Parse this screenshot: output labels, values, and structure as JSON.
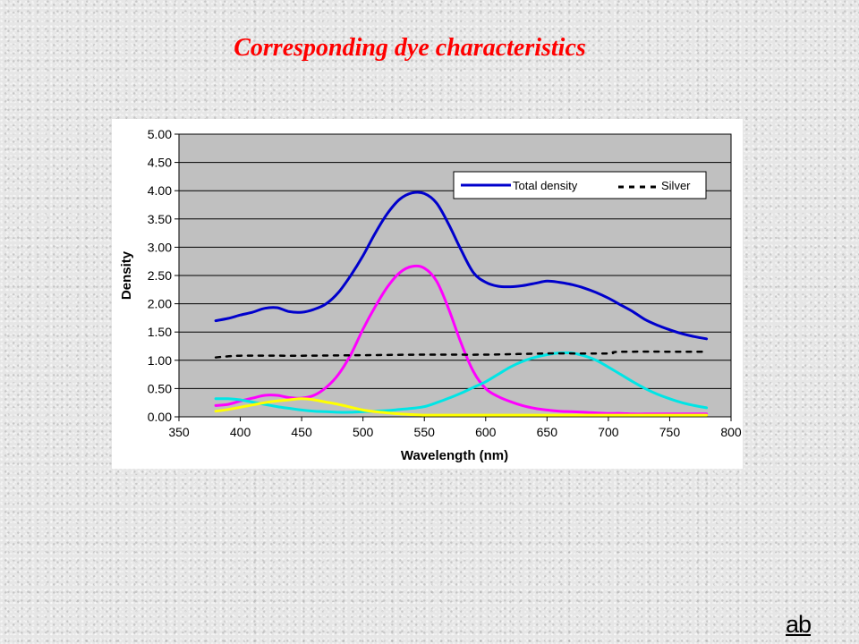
{
  "slide": {
    "title": "Corresponding dye characteristics",
    "logo_text": "ab"
  },
  "colors": {
    "title": "#ff0000",
    "plot_bg": "#c0c0c0",
    "total_density": "#0000cc",
    "magenta": "#ff00ff",
    "cyan": "#00e5e5",
    "yellow": "#ffff00",
    "silver": "#000000"
  },
  "chart_data": {
    "type": "line",
    "title": "",
    "xlabel": "Wavelength (nm)",
    "ylabel": "Density",
    "xlim": [
      350,
      800
    ],
    "ylim": [
      0,
      5
    ],
    "x_ticks": [
      "350",
      "400",
      "450",
      "500",
      "550",
      "600",
      "650",
      "700",
      "750",
      "800"
    ],
    "y_ticks": [
      "0.00",
      "0.50",
      "1.00",
      "1.50",
      "2.00",
      "2.50",
      "3.00",
      "3.50",
      "4.00",
      "4.50",
      "5.00"
    ],
    "grid": "horizontal",
    "legend_position": "top-right",
    "legend_entries": [
      "Total density",
      "Silver"
    ],
    "series": [
      {
        "name": "Total density",
        "color": "#0000cc",
        "style": "solid",
        "x": [
          380,
          390,
          400,
          410,
          420,
          430,
          440,
          450,
          460,
          470,
          480,
          490,
          500,
          510,
          520,
          530,
          540,
          550,
          560,
          570,
          580,
          590,
          600,
          610,
          620,
          630,
          640,
          650,
          660,
          670,
          680,
          690,
          700,
          710,
          720,
          730,
          740,
          750,
          760,
          770,
          780
        ],
        "y": [
          1.7,
          1.74,
          1.8,
          1.85,
          1.92,
          1.93,
          1.86,
          1.85,
          1.9,
          2.0,
          2.2,
          2.5,
          2.85,
          3.25,
          3.6,
          3.85,
          3.96,
          3.95,
          3.78,
          3.4,
          2.95,
          2.55,
          2.38,
          2.31,
          2.3,
          2.32,
          2.36,
          2.4,
          2.38,
          2.34,
          2.28,
          2.2,
          2.1,
          1.98,
          1.86,
          1.72,
          1.62,
          1.54,
          1.47,
          1.42,
          1.38
        ]
      },
      {
        "color": "#ff00ff",
        "style": "solid",
        "x": [
          380,
          390,
          400,
          410,
          420,
          430,
          440,
          450,
          460,
          470,
          480,
          490,
          500,
          510,
          520,
          530,
          540,
          550,
          560,
          570,
          580,
          590,
          600,
          610,
          620,
          630,
          640,
          650,
          660,
          670,
          680,
          690,
          700,
          710,
          720,
          730,
          740,
          750,
          760,
          770,
          780
        ],
        "y": [
          0.2,
          0.22,
          0.28,
          0.33,
          0.38,
          0.38,
          0.34,
          0.33,
          0.38,
          0.52,
          0.75,
          1.1,
          1.55,
          1.95,
          2.3,
          2.55,
          2.66,
          2.63,
          2.4,
          1.9,
          1.3,
          0.8,
          0.5,
          0.36,
          0.27,
          0.2,
          0.15,
          0.12,
          0.1,
          0.09,
          0.08,
          0.07,
          0.06,
          0.06,
          0.05,
          0.05,
          0.05,
          0.05,
          0.05,
          0.05,
          0.05
        ]
      },
      {
        "color": "#00e5e5",
        "style": "solid",
        "x": [
          380,
          390,
          400,
          410,
          420,
          430,
          440,
          450,
          460,
          470,
          480,
          490,
          500,
          510,
          520,
          530,
          540,
          550,
          560,
          570,
          580,
          590,
          600,
          610,
          620,
          630,
          640,
          650,
          660,
          670,
          680,
          690,
          700,
          710,
          720,
          730,
          740,
          750,
          760,
          770,
          780
        ],
        "y": [
          0.32,
          0.32,
          0.3,
          0.26,
          0.22,
          0.18,
          0.15,
          0.12,
          0.1,
          0.09,
          0.08,
          0.08,
          0.09,
          0.1,
          0.11,
          0.13,
          0.15,
          0.18,
          0.25,
          0.33,
          0.42,
          0.52,
          0.62,
          0.75,
          0.88,
          0.98,
          1.05,
          1.1,
          1.13,
          1.13,
          1.08,
          1.0,
          0.88,
          0.75,
          0.62,
          0.5,
          0.4,
          0.32,
          0.25,
          0.2,
          0.16
        ]
      },
      {
        "color": "#ffff00",
        "style": "solid",
        "x": [
          380,
          390,
          400,
          410,
          420,
          430,
          440,
          450,
          460,
          470,
          480,
          490,
          500,
          510,
          520,
          530,
          540,
          550,
          560,
          570,
          580,
          590,
          600,
          610,
          620,
          630,
          640,
          650,
          660,
          670,
          680,
          690,
          700,
          710,
          720,
          730,
          740,
          750,
          760,
          770,
          780
        ],
        "y": [
          0.1,
          0.13,
          0.17,
          0.21,
          0.25,
          0.28,
          0.3,
          0.32,
          0.3,
          0.26,
          0.22,
          0.17,
          0.12,
          0.09,
          0.07,
          0.05,
          0.04,
          0.03,
          0.03,
          0.03,
          0.03,
          0.03,
          0.03,
          0.03,
          0.03,
          0.03,
          0.03,
          0.03,
          0.03,
          0.03,
          0.03,
          0.03,
          0.03,
          0.03,
          0.03,
          0.03,
          0.03,
          0.03,
          0.03,
          0.03,
          0.03
        ]
      },
      {
        "name": "Silver",
        "color": "#000000",
        "style": "dashed",
        "x": [
          380,
          400,
          450,
          500,
          550,
          600,
          650,
          700,
          710,
          780
        ],
        "y": [
          1.05,
          1.08,
          1.08,
          1.09,
          1.1,
          1.1,
          1.12,
          1.12,
          1.15,
          1.15
        ]
      }
    ]
  }
}
